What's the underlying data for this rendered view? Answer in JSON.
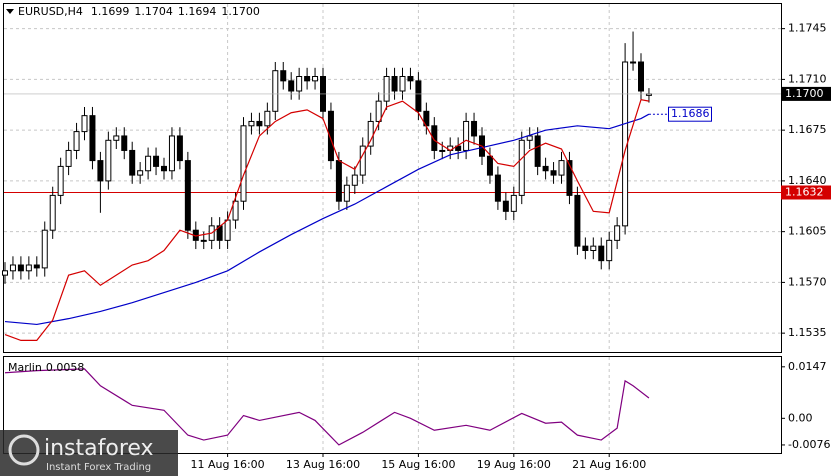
{
  "chart_data": {
    "type": "candlestick",
    "title": "EURUSD,H4",
    "close_label": "1.1700",
    "categories": [
      null,
      null,
      null,
      null,
      null,
      null,
      null,
      null,
      null,
      null,
      null,
      null,
      null,
      null,
      null,
      null,
      null,
      null,
      null,
      null,
      null,
      null,
      null,
      null,
      null,
      null,
      null,
      null,
      "11 Aug 16:00",
      null,
      null,
      null,
      null,
      null,
      null,
      null,
      null,
      null,
      null,
      null,
      "13 Aug 16:00",
      null,
      null,
      null,
      null,
      null,
      null,
      null,
      null,
      null,
      null,
      null,
      "15 Aug 16:00",
      null,
      null,
      null,
      null,
      null,
      null,
      null,
      null,
      null,
      null,
      null,
      "19 Aug 16:00",
      null,
      null,
      null,
      null,
      null,
      null,
      null,
      null,
      null,
      null,
      null,
      "21 Aug 16:00",
      null,
      null,
      null,
      null,
      null
    ],
    "open": [
      1.1575,
      1.1578,
      1.1582,
      1.1578,
      1.1582,
      1.158,
      1.1606,
      1.163,
      1.165,
      1.1661,
      1.1674,
      1.1685,
      1.1654,
      1.164,
      1.1668,
      1.1671,
      1.1661,
      1.1644,
      1.1647,
      1.1657,
      1.165,
      1.1647,
      1.1671,
      1.1654,
      1.1606,
      1.1599,
      1.1599,
      1.1609,
      1.1599,
      1.1613,
      1.1626,
      1.1678,
      1.1681,
      1.1678,
      1.1688,
      1.1716,
      1.1709,
      1.1702,
      1.1712,
      1.1709,
      1.1712,
      1.1688,
      1.1654,
      1.1626,
      1.1637,
      1.1644,
      1.1664,
      1.1681,
      1.1695,
      1.1712,
      1.1702,
      1.1712,
      1.1709,
      1.1688,
      1.1678,
      1.1661,
      1.1661,
      1.1664,
      1.1661,
      1.1681,
      1.1671,
      1.1657,
      1.1644,
      1.1626,
      1.1619,
      1.163,
      1.1668,
      1.1671,
      1.165,
      1.1647,
      1.1644,
      1.1654,
      1.163,
      1.1595,
      1.1592,
      1.1595,
      1.1585,
      1.1599,
      1.1609,
      1.1722,
      1.1722,
      1.1699
    ],
    "high": [
      1.1584,
      1.1588,
      1.1588,
      1.1588,
      1.1588,
      1.1612,
      1.1636,
      1.1656,
      1.1667,
      1.168,
      1.1691,
      1.1691,
      1.166,
      1.1674,
      1.1677,
      1.1677,
      1.1667,
      1.1653,
      1.1663,
      1.1663,
      1.1656,
      1.1677,
      1.1677,
      1.166,
      1.1612,
      1.1605,
      1.1615,
      1.1615,
      1.1619,
      1.1632,
      1.1684,
      1.1687,
      1.1687,
      1.1694,
      1.1722,
      1.1722,
      1.1715,
      1.1718,
      1.1718,
      1.1718,
      1.1718,
      1.1694,
      1.166,
      1.1643,
      1.165,
      1.167,
      1.1687,
      1.1701,
      1.1718,
      1.1718,
      1.1718,
      1.1718,
      1.1715,
      1.1694,
      1.1684,
      1.1667,
      1.167,
      1.167,
      1.1687,
      1.1687,
      1.1677,
      1.1663,
      1.165,
      1.1632,
      1.1636,
      1.1674,
      1.1677,
      1.1677,
      1.1656,
      1.1653,
      1.166,
      1.166,
      1.1636,
      1.1601,
      1.1601,
      1.1601,
      1.1605,
      1.1615,
      1.1735,
      1.1743,
      1.1728,
      1.1704
    ],
    "low": [
      1.1569,
      1.1572,
      1.1572,
      1.1572,
      1.1574,
      1.1574,
      1.16,
      1.1624,
      1.1644,
      1.1655,
      1.1668,
      1.1648,
      1.1618,
      1.1634,
      1.1662,
      1.1655,
      1.1638,
      1.1638,
      1.1641,
      1.1644,
      1.1641,
      1.1641,
      1.1648,
      1.16,
      1.1593,
      1.1593,
      1.1593,
      1.1593,
      1.1593,
      1.1607,
      1.162,
      1.1672,
      1.1672,
      1.1672,
      1.1682,
      1.1703,
      1.1696,
      1.1696,
      1.1703,
      1.1703,
      1.1682,
      1.1648,
      1.162,
      1.162,
      1.1631,
      1.1638,
      1.1658,
      1.1675,
      1.1689,
      1.1696,
      1.1696,
      1.1703,
      1.1682,
      1.1672,
      1.1655,
      1.1655,
      1.1655,
      1.1655,
      1.1655,
      1.1665,
      1.1651,
      1.1638,
      1.162,
      1.1613,
      1.1613,
      1.1624,
      1.1662,
      1.1644,
      1.1641,
      1.1638,
      1.1638,
      1.1624,
      1.1589,
      1.1586,
      1.1586,
      1.1579,
      1.1579,
      1.1593,
      1.1603,
      1.1716,
      1.1696,
      1.1694
    ],
    "close": [
      1.1578,
      1.1582,
      1.1578,
      1.1582,
      1.158,
      1.1606,
      1.163,
      1.165,
      1.1661,
      1.1674,
      1.1685,
      1.1654,
      1.164,
      1.1668,
      1.1671,
      1.1661,
      1.1644,
      1.1647,
      1.1657,
      1.165,
      1.1647,
      1.1671,
      1.1654,
      1.1606,
      1.1599,
      1.1599,
      1.1609,
      1.1599,
      1.1613,
      1.1626,
      1.1678,
      1.1681,
      1.1678,
      1.1688,
      1.1716,
      1.1709,
      1.1702,
      1.1712,
      1.1709,
      1.1712,
      1.1688,
      1.1654,
      1.1626,
      1.1637,
      1.1644,
      1.1664,
      1.1681,
      1.1695,
      1.1712,
      1.1702,
      1.1712,
      1.1709,
      1.1688,
      1.1678,
      1.1661,
      1.1661,
      1.1664,
      1.1661,
      1.1681,
      1.1671,
      1.1657,
      1.1644,
      1.1626,
      1.1619,
      1.163,
      1.1668,
      1.1671,
      1.165,
      1.1647,
      1.1644,
      1.1654,
      1.163,
      1.1595,
      1.1592,
      1.1595,
      1.1585,
      1.1599,
      1.1609,
      1.1722,
      1.1722,
      1.1702,
      1.17
    ],
    "ma_fast": {
      "color": "#d40000",
      "x": [
        0,
        2,
        4,
        6,
        8,
        10,
        12,
        14,
        16,
        18,
        20,
        22,
        24,
        26,
        28,
        30,
        32,
        34,
        36,
        38,
        40,
        42,
        44,
        46,
        48,
        50,
        52,
        54,
        56,
        58,
        60,
        62,
        64,
        66,
        68,
        70,
        72,
        74,
        76,
        78,
        80,
        81
      ],
      "values": [
        1.1534,
        1.153,
        1.153,
        1.1544,
        1.1575,
        1.1578,
        1.1568,
        1.1575,
        1.1582,
        1.1585,
        1.1592,
        1.1606,
        1.1602,
        1.1604,
        1.1613,
        1.1644,
        1.1671,
        1.1681,
        1.1687,
        1.1689,
        1.1683,
        1.1654,
        1.1648,
        1.1668,
        1.1691,
        1.1695,
        1.1687,
        1.1668,
        1.1661,
        1.1668,
        1.1664,
        1.1652,
        1.165,
        1.1661,
        1.1666,
        1.1662,
        1.164,
        1.1619,
        1.1618,
        1.1661,
        1.1696,
        1.1695
      ]
    },
    "ma_slow": {
      "color": "#0000c8",
      "x": [
        0,
        4,
        8,
        12,
        16,
        20,
        24,
        28,
        32,
        36,
        40,
        44,
        48,
        52,
        56,
        60,
        64,
        68,
        72,
        76,
        80,
        81
      ],
      "values": [
        1.1543,
        1.1541,
        1.1545,
        1.155,
        1.1556,
        1.1563,
        1.157,
        1.1578,
        1.1591,
        1.1603,
        1.1614,
        1.1624,
        1.1636,
        1.1648,
        1.1658,
        1.1663,
        1.1668,
        1.1675,
        1.1678,
        1.1676,
        1.1683,
        1.1686
      ]
    },
    "hline": {
      "value": 1.1632,
      "color": "#d40000"
    },
    "ylim": [
      1.1522,
      1.1762
    ],
    "yticks": [
      1.1745,
      {
        "value": 1.171,
        "label": "1.1710"
      },
      1.1675,
      {
        "value": 1.164,
        "label": "1.1640"
      },
      1.1605,
      {
        "value": 1.157,
        "label": "1.1570"
      },
      1.1535
    ],
    "grid": true,
    "indicator": {
      "name": "Marlin",
      "color": "#800080",
      "x": [
        0,
        4,
        10,
        12,
        16,
        20,
        23,
        25,
        28,
        30,
        32,
        37,
        39,
        42,
        45,
        49,
        51,
        54,
        58,
        61,
        65,
        68,
        70,
        72,
        75,
        77,
        78,
        79,
        81
      ],
      "values": [
        0.013,
        0.0136,
        0.0141,
        0.0093,
        0.0037,
        0.0023,
        -0.0048,
        -0.0062,
        -0.0048,
        0.0008,
        -0.0006,
        0.0017,
        -0.0006,
        -0.0076,
        -0.004,
        0.0017,
        0,
        -0.0034,
        -0.002,
        -0.0034,
        0.0014,
        -0.0014,
        -0.0011,
        -0.0048,
        -0.0062,
        -0.0028,
        0.0107,
        0.0093,
        0.0058
      ],
      "ylim": [
        -0.0099,
        0.0175
      ],
      "yticks": [
        0.0147,
        {
          "value": 0,
          "label": "0.00"
        },
        -0.0076
      ]
    },
    "watermark": {
      "brand": "instaforex",
      "tagline": "Instant Forex Trading"
    }
  }
}
